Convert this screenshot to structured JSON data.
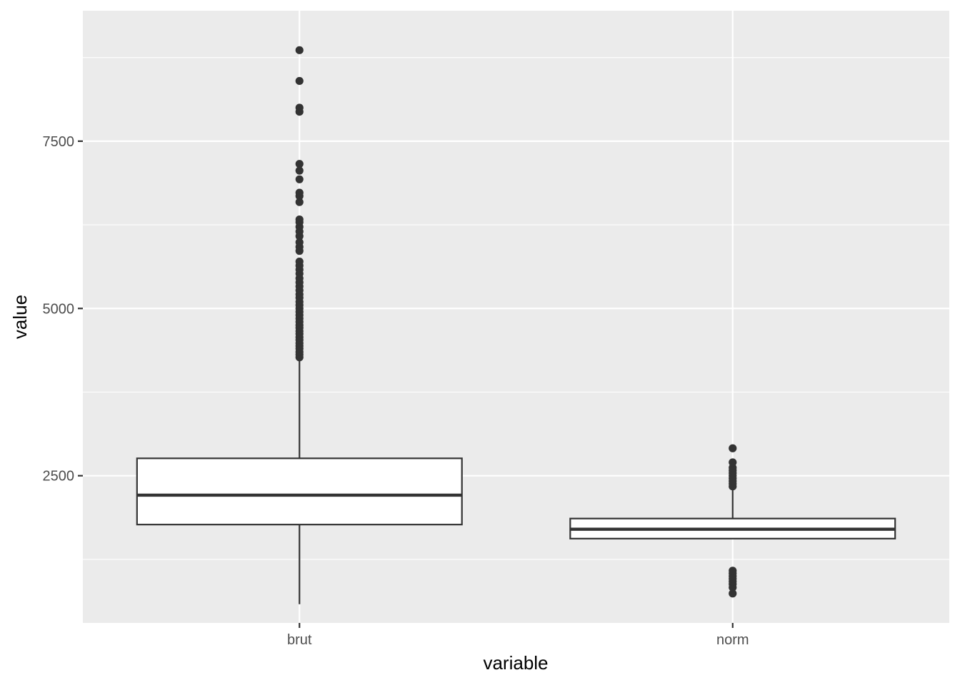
{
  "chart_data": {
    "type": "boxplot",
    "title": "",
    "xlabel": "variable",
    "ylabel": "value",
    "categories": [
      "brut",
      "norm"
    ],
    "ylim": [
      300,
      9450
    ],
    "yticks": [
      2500,
      5000,
      7500
    ],
    "grid": true,
    "legend": "none",
    "colors": {
      "panel": "#ebebeb",
      "grid": "#ffffff",
      "box_fill": "#ffffff",
      "box_stroke": "#333333",
      "outlier": "#333333",
      "tick": "#333333",
      "tick_label": "#4d4d4d"
    },
    "boxes": [
      {
        "category": "brut",
        "min": 580,
        "q1": 1770,
        "median": 2210,
        "q3": 2760,
        "max": 4250,
        "outliers": [
          4270,
          4310,
          4350,
          4400,
          4440,
          4480,
          4530,
          4570,
          4620,
          4660,
          4710,
          4750,
          4800,
          4850,
          4900,
          4950,
          5000,
          5050,
          5100,
          5160,
          5210,
          5270,
          5330,
          5390,
          5450,
          5520,
          5580,
          5640,
          5700,
          5860,
          5920,
          5990,
          6080,
          6150,
          6220,
          6290,
          6330,
          6590,
          6680,
          6730,
          6930,
          7060,
          7160,
          7940,
          8000,
          8400,
          8860
        ]
      },
      {
        "category": "norm",
        "min": 1560,
        "q1": 1560,
        "median": 1700,
        "q3": 1860,
        "max": 2320,
        "outliers": [
          740,
          830,
          880,
          920,
          960,
          1000,
          1040,
          1080,
          2340,
          2380,
          2420,
          2460,
          2500,
          2540,
          2580,
          2620,
          2700,
          2910
        ]
      }
    ]
  }
}
